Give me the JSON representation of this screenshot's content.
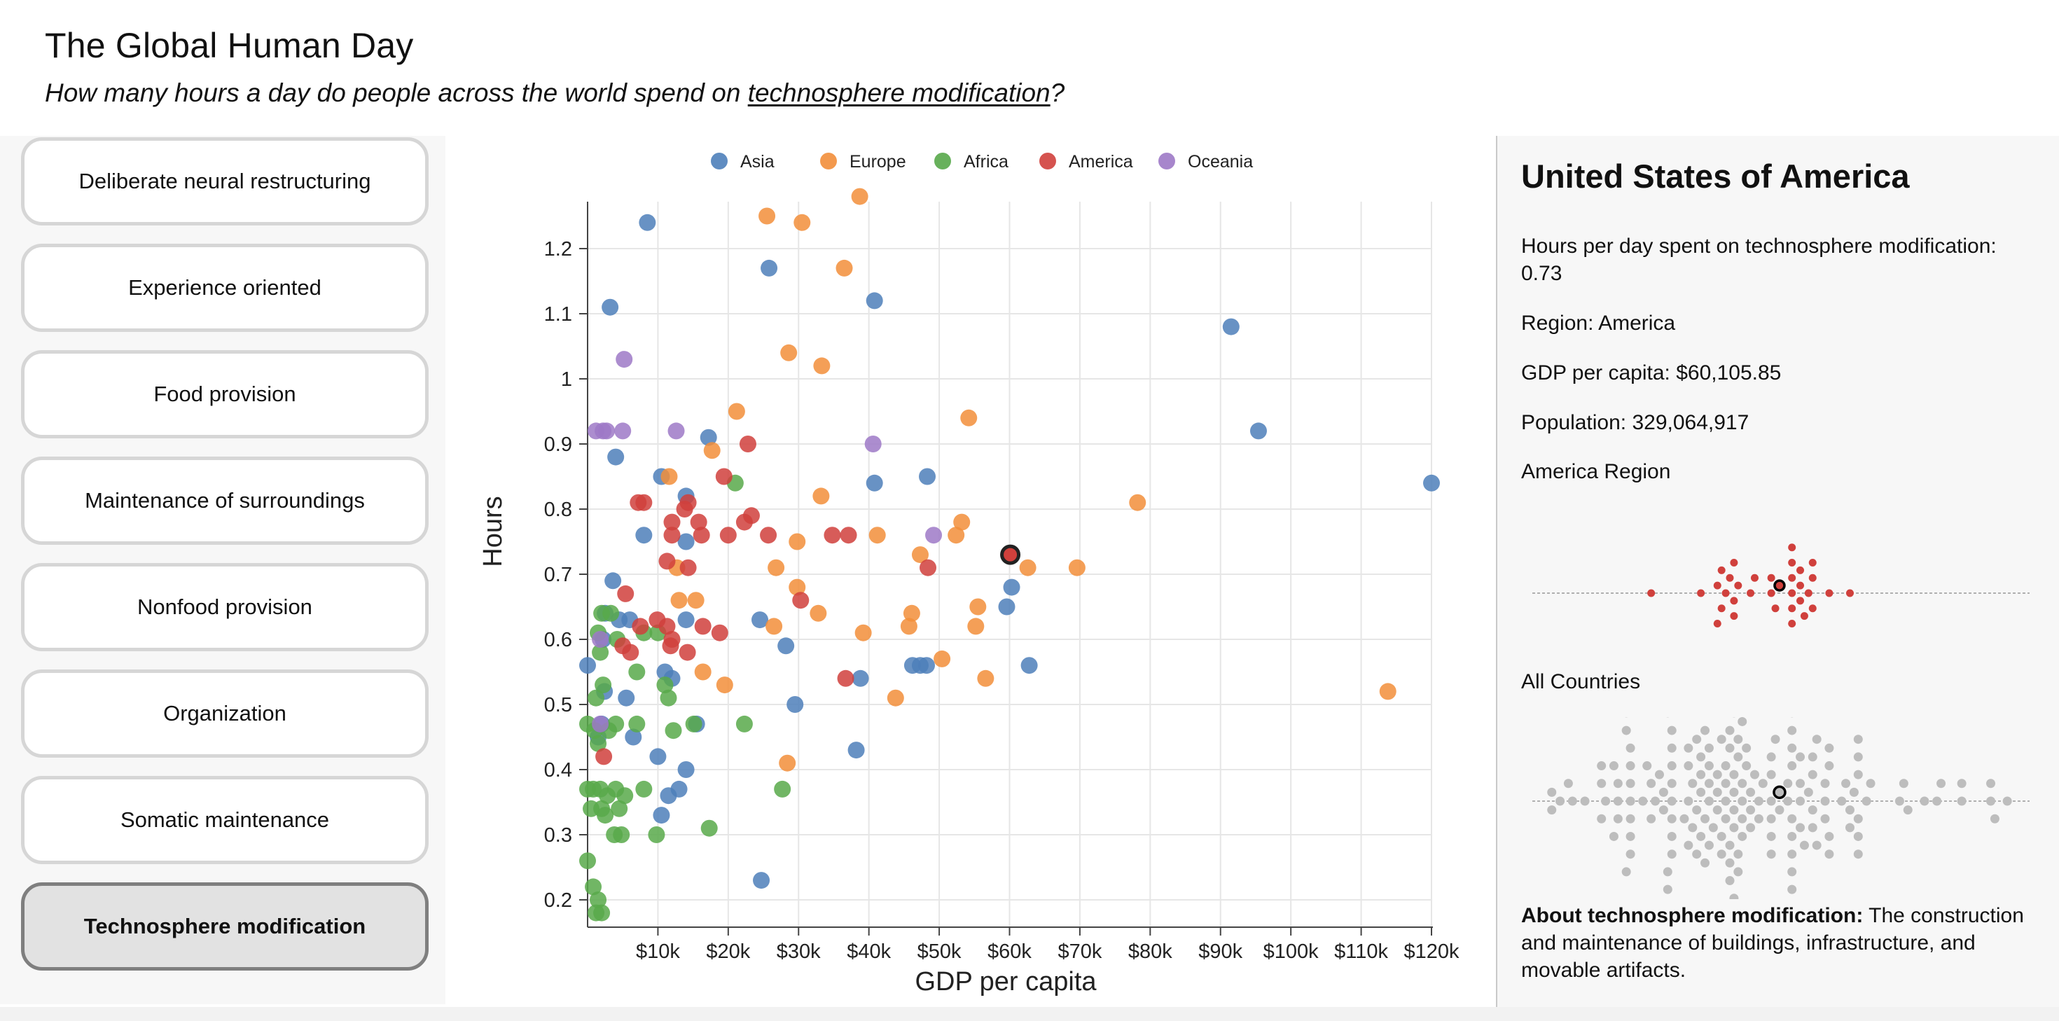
{
  "header": {
    "title": "The Global Human Day",
    "subtitle_prefix": "How many hours a day do people across the world spend on ",
    "subtitle_link": "technosphere modification",
    "subtitle_suffix": "?"
  },
  "sidebar": {
    "buttons": [
      {
        "label": "Deliberate neural restructuring",
        "active": false
      },
      {
        "label": "Experience oriented",
        "active": false
      },
      {
        "label": "Food provision",
        "active": false
      },
      {
        "label": "Maintenance of surroundings",
        "active": false
      },
      {
        "label": "Nonfood provision",
        "active": false
      },
      {
        "label": "Organization",
        "active": false
      },
      {
        "label": "Somatic maintenance",
        "active": false
      },
      {
        "label": "Technosphere modification",
        "active": true
      }
    ]
  },
  "details": {
    "country": "United States of America",
    "hours_line": "Hours per day spent on technosphere modification: 0.73",
    "region_line": "Region: America",
    "gdp_line": "GDP per capita: $60,105.85",
    "population_line": "Population: 329,064,917",
    "region_section_label": "America Region",
    "all_section_label": "All Countries",
    "about_label": "About technosphere modification:",
    "about_text": " The construction and maintenance of buildings, infrastructure, and movable artifacts."
  },
  "colors": {
    "Asia": "#4e7fba",
    "Europe": "#f28e3a",
    "Africa": "#58a94a",
    "America": "#d0403c",
    "Oceania": "#9d79c7",
    "all_countries": "#bdbdbd",
    "selected_ring": "#222222"
  },
  "chart_data": {
    "type": "scatter",
    "xlabel": "GDP per capita",
    "ylabel": "Hours",
    "xlim": [
      0,
      120000
    ],
    "ylim": [
      0.18,
      1.28
    ],
    "xticks": [
      10000,
      20000,
      30000,
      40000,
      50000,
      60000,
      70000,
      80000,
      90000,
      100000,
      110000,
      120000
    ],
    "xtick_labels": [
      "$10k",
      "$20k",
      "$30k",
      "$40k",
      "$50k",
      "$60k",
      "$70k",
      "$80k",
      "$90k",
      "$100k",
      "$110k",
      "$120k"
    ],
    "yticks": [
      0.2,
      0.3,
      0.4,
      0.5,
      0.6,
      0.7,
      0.8,
      0.9,
      1.0,
      1.1,
      1.2
    ],
    "ytick_labels": [
      "0.2",
      "0.3",
      "0.4",
      "0.5",
      "0.6",
      "0.7",
      "0.8",
      "0.9",
      "1",
      "1.1",
      "1.2"
    ],
    "legend": [
      "Asia",
      "Europe",
      "Africa",
      "America",
      "Oceania"
    ],
    "selected": {
      "region": "America",
      "x": 60106,
      "y": 0.73
    },
    "series": [
      {
        "name": "Asia",
        "points": [
          [
            8500,
            1.24
          ],
          [
            3200,
            1.11
          ],
          [
            25800,
            1.17
          ],
          [
            40800,
            1.12
          ],
          [
            91500,
            1.08
          ],
          [
            95400,
            0.92
          ],
          [
            120000,
            0.84
          ],
          [
            17200,
            0.91
          ],
          [
            4000,
            0.88
          ],
          [
            10500,
            0.85
          ],
          [
            14000,
            0.82
          ],
          [
            40800,
            0.84
          ],
          [
            48300,
            0.85
          ],
          [
            8000,
            0.76
          ],
          [
            14000,
            0.75
          ],
          [
            3600,
            0.69
          ],
          [
            2500,
            0.64
          ],
          [
            4500,
            0.63
          ],
          [
            6000,
            0.63
          ],
          [
            2200,
            0.6
          ],
          [
            0,
            0.56
          ],
          [
            11000,
            0.55
          ],
          [
            12000,
            0.54
          ],
          [
            2400,
            0.52
          ],
          [
            5500,
            0.51
          ],
          [
            2000,
            0.47
          ],
          [
            1500,
            0.45
          ],
          [
            6500,
            0.45
          ],
          [
            10000,
            0.42
          ],
          [
            13000,
            0.37
          ],
          [
            14000,
            0.4
          ],
          [
            11500,
            0.36
          ],
          [
            10500,
            0.33
          ],
          [
            24700,
            0.23
          ],
          [
            24500,
            0.63
          ],
          [
            28200,
            0.59
          ],
          [
            29500,
            0.5
          ],
          [
            38200,
            0.43
          ],
          [
            38800,
            0.54
          ],
          [
            46200,
            0.56
          ],
          [
            47300,
            0.56
          ],
          [
            48200,
            0.56
          ],
          [
            59600,
            0.65
          ],
          [
            60300,
            0.68
          ],
          [
            62800,
            0.56
          ],
          [
            15500,
            0.47
          ],
          [
            14000,
            0.63
          ]
        ]
      },
      {
        "name": "Europe",
        "points": [
          [
            25500,
            1.25
          ],
          [
            30500,
            1.24
          ],
          [
            38700,
            1.28
          ],
          [
            36500,
            1.17
          ],
          [
            28600,
            1.04
          ],
          [
            33300,
            1.02
          ],
          [
            21200,
            0.95
          ],
          [
            11600,
            0.85
          ],
          [
            17700,
            0.89
          ],
          [
            54200,
            0.94
          ],
          [
            33200,
            0.82
          ],
          [
            53200,
            0.78
          ],
          [
            78200,
            0.81
          ],
          [
            29800,
            0.75
          ],
          [
            41200,
            0.76
          ],
          [
            52400,
            0.76
          ],
          [
            12700,
            0.71
          ],
          [
            26800,
            0.71
          ],
          [
            47300,
            0.73
          ],
          [
            62600,
            0.71
          ],
          [
            69600,
            0.71
          ],
          [
            13000,
            0.66
          ],
          [
            15400,
            0.66
          ],
          [
            29800,
            0.68
          ],
          [
            32800,
            0.64
          ],
          [
            46100,
            0.64
          ],
          [
            55500,
            0.65
          ],
          [
            26500,
            0.62
          ],
          [
            45700,
            0.62
          ],
          [
            55200,
            0.62
          ],
          [
            39200,
            0.61
          ],
          [
            16400,
            0.55
          ],
          [
            19500,
            0.53
          ],
          [
            50400,
            0.57
          ],
          [
            56600,
            0.54
          ],
          [
            43800,
            0.51
          ],
          [
            113800,
            0.52
          ],
          [
            28400,
            0.41
          ]
        ]
      },
      {
        "name": "Africa",
        "points": [
          [
            2000,
            0.64
          ],
          [
            3300,
            0.64
          ],
          [
            1500,
            0.61
          ],
          [
            4200,
            0.6
          ],
          [
            8000,
            0.61
          ],
          [
            10000,
            0.61
          ],
          [
            1800,
            0.58
          ],
          [
            7000,
            0.55
          ],
          [
            11000,
            0.53
          ],
          [
            11500,
            0.51
          ],
          [
            2200,
            0.53
          ],
          [
            1200,
            0.51
          ],
          [
            0,
            0.47
          ],
          [
            1000,
            0.46
          ],
          [
            3000,
            0.46
          ],
          [
            4000,
            0.47
          ],
          [
            7000,
            0.47
          ],
          [
            12200,
            0.46
          ],
          [
            15100,
            0.47
          ],
          [
            22300,
            0.47
          ],
          [
            1500,
            0.44
          ],
          [
            0,
            0.37
          ],
          [
            800,
            0.37
          ],
          [
            1800,
            0.37
          ],
          [
            2800,
            0.36
          ],
          [
            4000,
            0.37
          ],
          [
            5300,
            0.36
          ],
          [
            8000,
            0.37
          ],
          [
            500,
            0.34
          ],
          [
            2000,
            0.34
          ],
          [
            4500,
            0.34
          ],
          [
            2500,
            0.33
          ],
          [
            3800,
            0.3
          ],
          [
            4800,
            0.3
          ],
          [
            9800,
            0.3
          ],
          [
            17300,
            0.31
          ],
          [
            27700,
            0.37
          ],
          [
            0,
            0.26
          ],
          [
            800,
            0.22
          ],
          [
            1500,
            0.2
          ],
          [
            1200,
            0.18
          ],
          [
            2000,
            0.18
          ],
          [
            21000,
            0.84
          ]
        ]
      },
      {
        "name": "America",
        "points": [
          [
            22800,
            0.9
          ],
          [
            7200,
            0.81
          ],
          [
            8000,
            0.81
          ],
          [
            13800,
            0.8
          ],
          [
            19400,
            0.85
          ],
          [
            14300,
            0.81
          ],
          [
            12000,
            0.78
          ],
          [
            15800,
            0.78
          ],
          [
            22300,
            0.78
          ],
          [
            23300,
            0.79
          ],
          [
            12000,
            0.76
          ],
          [
            16200,
            0.76
          ],
          [
            20000,
            0.76
          ],
          [
            25700,
            0.76
          ],
          [
            34800,
            0.76
          ],
          [
            37100,
            0.76
          ],
          [
            11300,
            0.72
          ],
          [
            14300,
            0.71
          ],
          [
            48400,
            0.71
          ],
          [
            5400,
            0.67
          ],
          [
            9900,
            0.63
          ],
          [
            7500,
            0.62
          ],
          [
            11300,
            0.62
          ],
          [
            12000,
            0.6
          ],
          [
            16400,
            0.62
          ],
          [
            18800,
            0.61
          ],
          [
            11800,
            0.59
          ],
          [
            6100,
            0.58
          ],
          [
            14200,
            0.58
          ],
          [
            5000,
            0.59
          ],
          [
            30300,
            0.66
          ],
          [
            36700,
            0.54
          ],
          [
            2300,
            0.42
          ],
          [
            60106,
            0.73
          ]
        ]
      },
      {
        "name": "Oceania",
        "points": [
          [
            5200,
            1.03
          ],
          [
            1200,
            0.92
          ],
          [
            2200,
            0.92
          ],
          [
            2700,
            0.92
          ],
          [
            5000,
            0.92
          ],
          [
            12600,
            0.92
          ],
          [
            40600,
            0.9
          ],
          [
            49200,
            0.76
          ],
          [
            1800,
            0.6
          ],
          [
            1800,
            0.47
          ]
        ]
      }
    ]
  }
}
